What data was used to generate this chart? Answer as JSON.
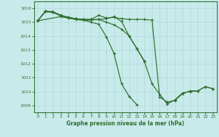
{
  "title": "Graphe pression niveau de la mer (hPa)",
  "bg_color": "#c8eaea",
  "grid_color": "#b0d8d8",
  "line_color": "#2d6e2d",
  "x_ticks": [
    0,
    1,
    2,
    3,
    4,
    5,
    6,
    7,
    8,
    9,
    10,
    11,
    12,
    13,
    14,
    15,
    16,
    17,
    18,
    19,
    20,
    21,
    22,
    23
  ],
  "y_ticks": [
    1009,
    1010,
    1011,
    1012,
    1013,
    1014,
    1015,
    1016
  ],
  "ylim": [
    1008.5,
    1016.5
  ],
  "xlim": [
    -0.5,
    23.5
  ],
  "series": [
    {
      "x": [
        0,
        1,
        2,
        3,
        4,
        5,
        6,
        7,
        8,
        9,
        10,
        11,
        12,
        13,
        14
      ],
      "y": [
        1015.1,
        1015.8,
        1015.75,
        1015.5,
        1015.35,
        1015.25,
        1015.2,
        1015.2,
        1015.2,
        1015.25,
        1015.4,
        1015.05,
        1014.0,
        1013.1,
        1012.2
      ]
    },
    {
      "x": [
        0,
        1,
        2,
        3,
        4,
        5,
        6,
        7,
        8,
        9,
        10,
        11,
        12,
        13,
        14,
        15,
        16,
        17,
        18,
        19,
        20,
        21,
        22,
        23
      ],
      "y": [
        1015.1,
        1015.75,
        1015.7,
        1015.45,
        1015.3,
        1015.2,
        1015.15,
        1015.15,
        1015.2,
        1015.0,
        1014.8,
        1014.5,
        1014.0,
        1013.1,
        1012.15,
        1010.55,
        1009.8,
        1009.1,
        1009.4,
        1009.9,
        1010.0,
        1010.05,
        1010.35,
        1010.2
      ]
    },
    {
      "x": [
        0,
        1,
        2,
        3,
        4,
        5,
        6,
        7,
        8,
        9,
        10,
        11,
        12,
        13,
        14,
        15,
        16,
        17,
        18,
        19,
        20,
        21,
        22,
        23
      ],
      "y": [
        1015.1,
        1015.8,
        1015.75,
        1015.5,
        1015.35,
        1015.25,
        1015.2,
        1015.2,
        1015.5,
        1015.3,
        1015.35,
        1015.25,
        1015.2,
        1015.2,
        1015.2,
        1015.15,
        1009.6,
        1009.25,
        1009.35,
        1009.85,
        1010.05,
        1010.05,
        1010.35,
        1010.2
      ]
    },
    {
      "x": [
        0,
        3,
        4,
        5,
        6,
        7,
        8,
        9,
        10,
        11,
        12,
        13
      ],
      "y": [
        1015.1,
        1015.4,
        1015.3,
        1015.2,
        1015.15,
        1015.0,
        1014.85,
        1013.95,
        1012.75,
        1010.55,
        1009.65,
        1009.05
      ]
    }
  ]
}
